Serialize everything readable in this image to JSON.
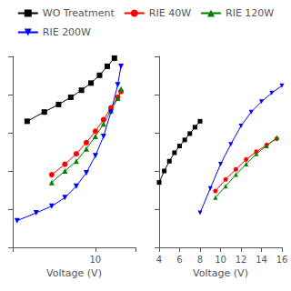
{
  "chart_data": [
    {
      "type": "line",
      "xlabel": "Voltage (V)",
      "log": true,
      "xlim": [
        3.8,
        16
      ],
      "xticks": [
        10
      ],
      "ylim": [
        0.001,
        100
      ],
      "yticks": [
        0.001,
        0.01,
        0.1,
        1,
        10,
        100
      ],
      "tick_labels": "x",
      "grid": false,
      "legend": "top",
      "series": [
        {
          "name": "WO Treatment",
          "color": "black",
          "marker": "square",
          "x": [
            4.5,
            5.5,
            6.5,
            7.5,
            8.5,
            9.5,
            10.5,
            11.5,
            12.5
          ],
          "values": [
            2.0,
            3.5,
            5.5,
            8.5,
            13.0,
            20.0,
            32.0,
            55.0,
            90.0
          ]
        },
        {
          "name": "RIE 40W",
          "color": "red",
          "marker": "circle",
          "x": [
            6.0,
            7.0,
            8.0,
            9.0,
            10.0,
            11.0,
            12.0,
            13.0,
            13.5
          ],
          "values": [
            0.08,
            0.15,
            0.28,
            0.55,
            1.1,
            2.2,
            4.5,
            8.5,
            12.0
          ]
        },
        {
          "name": "RIE 120W",
          "color": "green",
          "marker": "triangle-up",
          "x": [
            6.0,
            7.0,
            8.0,
            9.0,
            10.0,
            11.0,
            12.0,
            13.0,
            13.5
          ],
          "values": [
            0.05,
            0.1,
            0.18,
            0.38,
            0.8,
            1.7,
            3.8,
            8.0,
            14.0
          ]
        },
        {
          "name": "RIE 200W",
          "color": "blue",
          "marker": "triangle-down",
          "x": [
            4.0,
            5.0,
            6.0,
            7.0,
            8.0,
            9.0,
            10.0,
            11.0,
            12.0,
            13.0,
            13.5
          ],
          "values": [
            0.005,
            0.008,
            0.012,
            0.02,
            0.04,
            0.09,
            0.25,
            0.8,
            3.5,
            18.0,
            55.0
          ]
        }
      ]
    },
    {
      "type": "line",
      "xlabel": "Voltage (V)",
      "log": "y",
      "xlim": [
        4,
        16
      ],
      "xticks": [
        4,
        6,
        8,
        10,
        12,
        14,
        16
      ],
      "ylim": [
        0.01,
        1000
      ],
      "yticks": [
        0.01,
        0.1,
        1,
        10,
        100,
        1000
      ],
      "tick_labels": "x",
      "grid": false,
      "series": [
        {
          "color": "black",
          "marker": "square",
          "x": [
            4.0,
            4.5,
            5.0,
            5.5,
            6.0,
            6.5,
            7.0,
            7.5,
            8.0
          ],
          "values": [
            0.5,
            1.0,
            1.8,
            3.0,
            4.5,
            6.5,
            9.5,
            14.0,
            20.0
          ]
        },
        {
          "color": "red",
          "marker": "circle",
          "x": [
            9.5,
            10.5,
            11.5,
            12.5,
            13.5,
            14.5,
            15.5
          ],
          "values": [
            0.3,
            0.6,
            1.1,
            2.0,
            3.2,
            4.8,
            7.0
          ]
        },
        {
          "color": "green",
          "marker": "triangle-up",
          "x": [
            9.5,
            10.5,
            11.5,
            12.5,
            13.5,
            14.5,
            15.5
          ],
          "values": [
            0.2,
            0.4,
            0.8,
            1.5,
            2.8,
            4.5,
            7.5
          ]
        },
        {
          "color": "blue",
          "marker": "triangle-down",
          "x": [
            8.0,
            9.0,
            10.0,
            11.0,
            12.0,
            13.0,
            14.0,
            15.0,
            16.0
          ],
          "values": [
            0.08,
            0.35,
            1.5,
            5.0,
            15.0,
            35.0,
            65.0,
            110.0,
            170.0
          ]
        }
      ]
    }
  ]
}
